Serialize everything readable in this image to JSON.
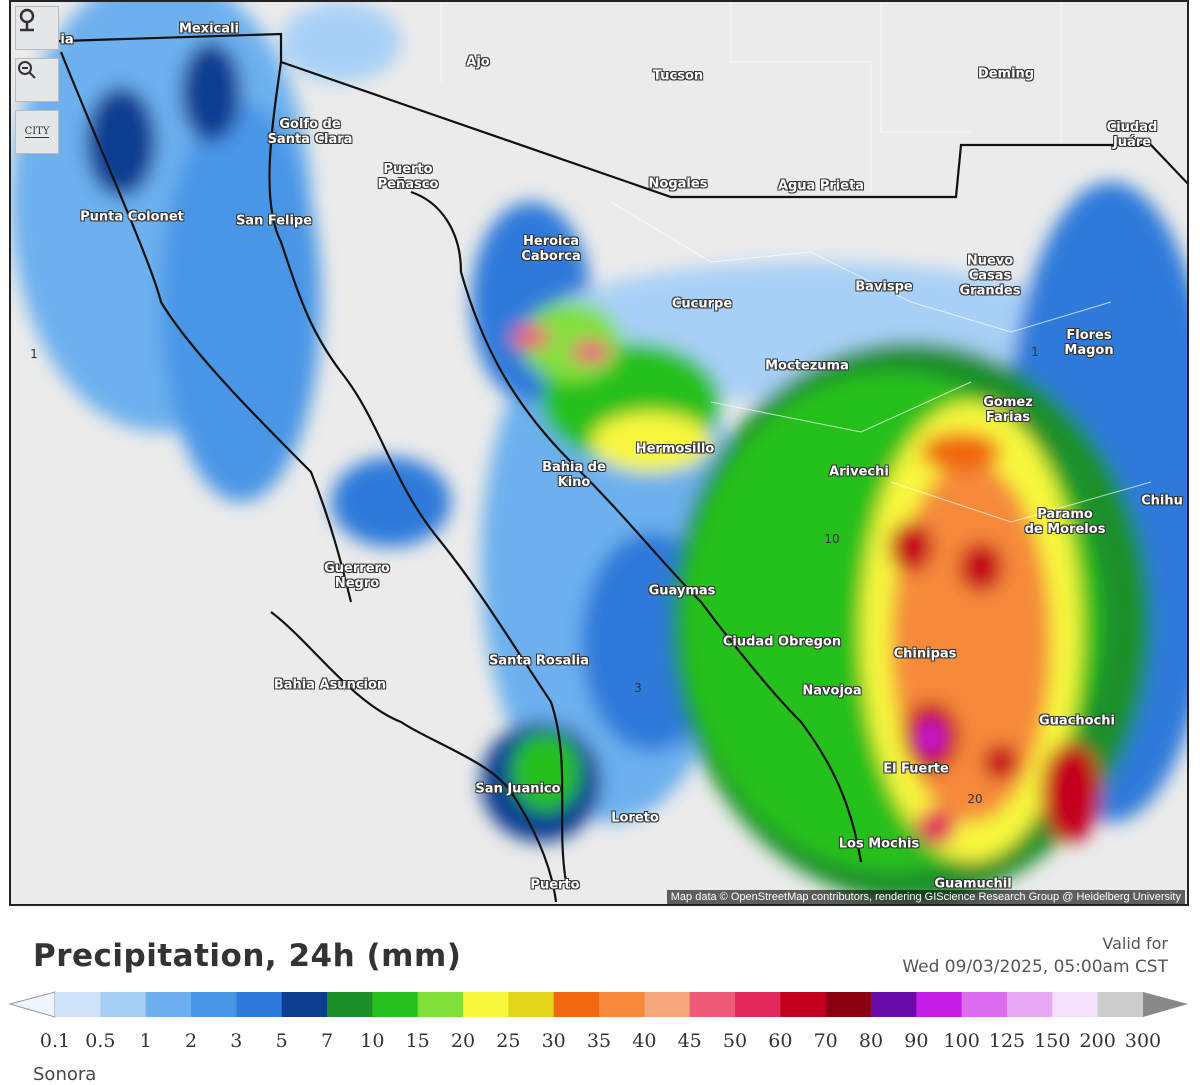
{
  "map": {
    "cities": [
      "Mexicali",
      "ia",
      "Ajo",
      "Tucson",
      "Deming",
      "Ciudad Juáre",
      "Golfo de\nSanta Clara",
      "Puerto\nPeñasco",
      "Nogales",
      "Agua Prieta",
      "Punta Colonet",
      "San Felipe",
      "Heroica\nCaborca",
      "Nuevo\nCasas\nGrandes",
      "Bavispe",
      "Cucurpe",
      "Flores\nMagon",
      "Moctezuma",
      "Gomez\nFarias",
      "Hermosillo",
      "Bahia de\nKino",
      "Arivechi",
      "Chihu",
      "Paramo\nde Morelos",
      "Guerrero\nNegro",
      "Guaymas",
      "Ciudad Obregon",
      "Santa Rosalia",
      "Chinipas",
      "Bahia Asuncion",
      "Navojoa",
      "Guachochi",
      "El Fuerte",
      "San Juanico",
      "Loreto",
      "Los Mochis",
      "Puerto",
      "Guamuchil"
    ],
    "contour_labels": [
      "1",
      "1",
      "10",
      "3",
      "20"
    ],
    "toolbar": {
      "city_button": "CITY"
    },
    "attribution": "Map data © OpenStreetMap contributors, rendering GIScience Research Group @ Heidelberg University"
  },
  "legend": {
    "title": "Precipitation, 24h (mm)",
    "valid_label": "Valid for",
    "valid_time": "Wed 09/03/2025, 05:00am CST",
    "colors": [
      "#cfe4fa",
      "#a8d0f6",
      "#6cb0ee",
      "#4a96e6",
      "#2e7ada",
      "#0d3d91",
      "#1c8f2b",
      "#28c01f",
      "#80e03a",
      "#f7f73c",
      "#e4d61a",
      "#f06810",
      "#f58a3a",
      "#f5a87c",
      "#ef5a7a",
      "#e2275a",
      "#c4001e",
      "#8a0010",
      "#6a0aa8",
      "#c41ee6",
      "#dc6cf0",
      "#e9a8f4",
      "#f5e2fa",
      "#cccccc"
    ],
    "ticks": [
      "0.1",
      "0.5",
      "1",
      "2",
      "3",
      "5",
      "7",
      "10",
      "15",
      "20",
      "25",
      "30",
      "35",
      "40",
      "45",
      "50",
      "60",
      "70",
      "80",
      "90",
      "100",
      "125",
      "150",
      "200",
      "300"
    ],
    "region": "Sonora"
  }
}
